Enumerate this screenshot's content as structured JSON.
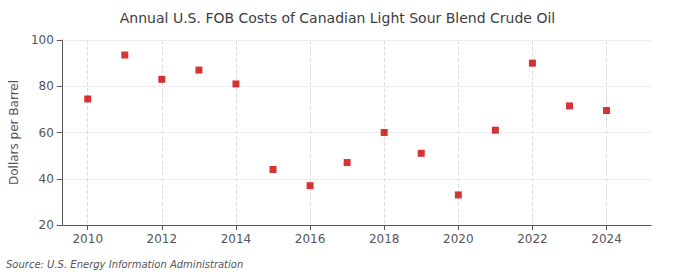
{
  "chart_data": {
    "type": "scatter",
    "title": "Annual U.S. FOB Costs of Canadian Light Sour Blend Crude Oil",
    "ylabel": "Dollars per Barrel",
    "annotation": "Source: U.S. Energy Information Administration",
    "x": [
      2010,
      2011,
      2012,
      2013,
      2014,
      2015,
      2016,
      2017,
      2018,
      2019,
      2020,
      2021,
      2022,
      2023,
      2024
    ],
    "values": [
      74.5,
      93.5,
      83.0,
      87.0,
      81.0,
      44.0,
      37.0,
      47.0,
      60.0,
      51.0,
      33.0,
      61.0,
      90.0,
      71.5,
      69.5
    ],
    "color": "#cc0000",
    "marker": "square",
    "xlim": [
      2009.3,
      2025.2
    ],
    "xticks": [
      2010,
      2012,
      2014,
      2016,
      2018,
      2020,
      2022,
      2024
    ],
    "ylim": [
      20,
      100
    ],
    "yticks": [
      20,
      40,
      60,
      80,
      100
    ],
    "grid": true
  }
}
